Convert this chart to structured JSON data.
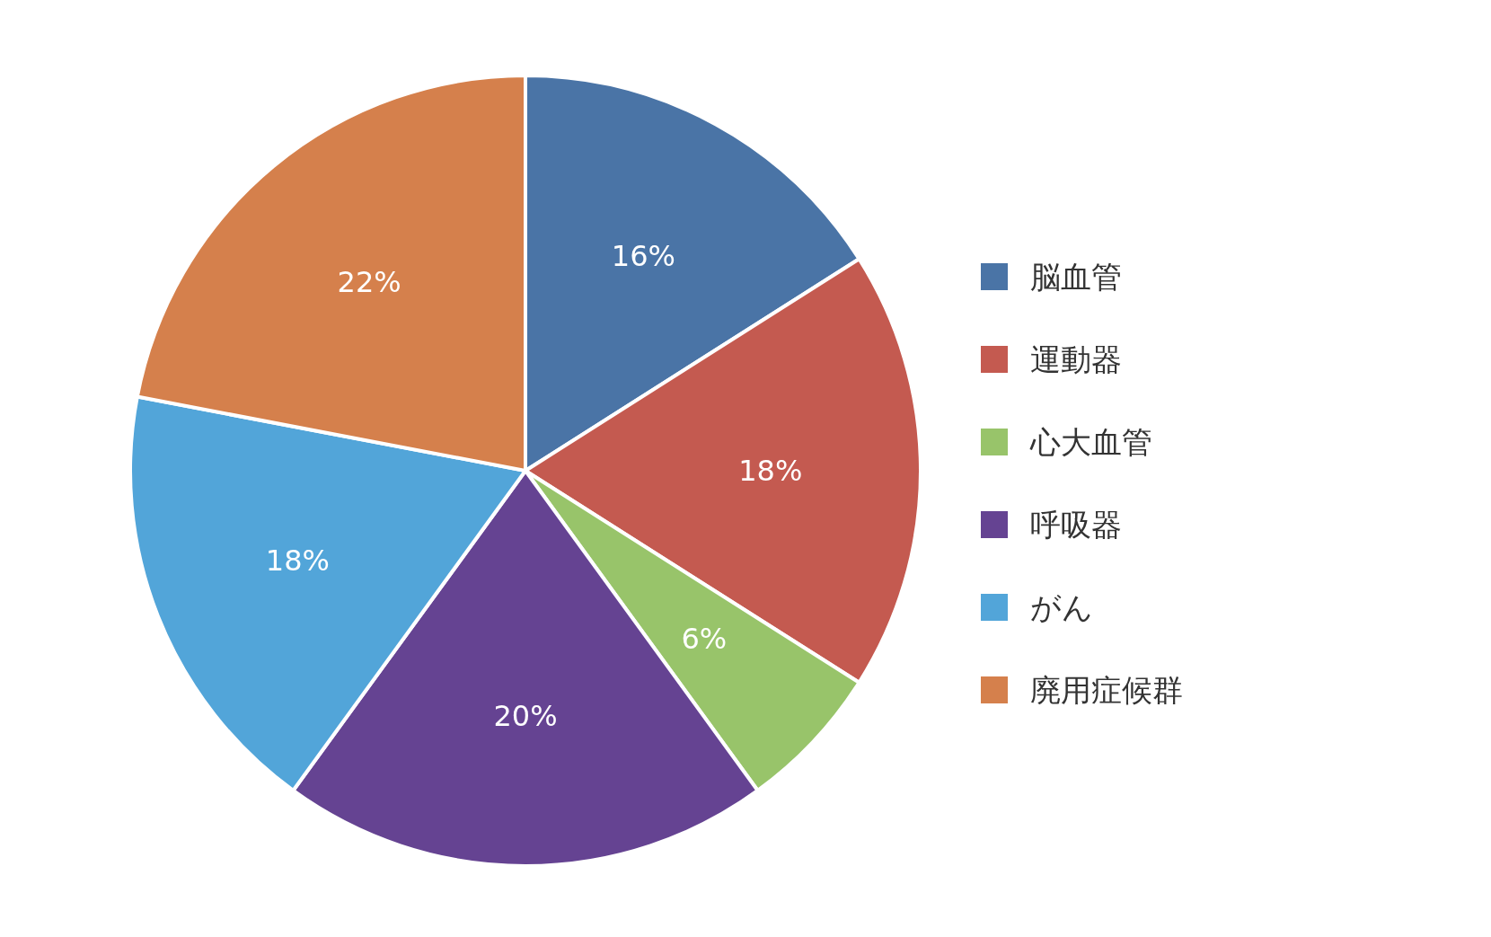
{
  "chart_data": {
    "type": "pie",
    "categories": [
      "脳血管",
      "運動器",
      "心大血管",
      "呼吸器",
      "がん",
      "廃用症候群"
    ],
    "values": [
      16,
      18,
      6,
      20,
      18,
      22
    ],
    "colors": [
      "#4a74a6",
      "#c45a50",
      "#98c46a",
      "#654392",
      "#52a5d9",
      "#d5804c"
    ],
    "value_labels": [
      "16%",
      "18%",
      "6%",
      "20%",
      "18%",
      "22%"
    ],
    "legend": "right"
  }
}
